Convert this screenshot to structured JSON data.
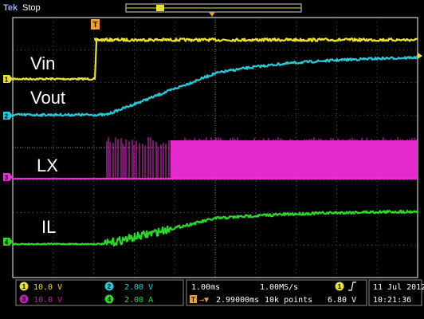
{
  "header": {
    "brand": "Tek",
    "run_state": "Stop",
    "trigger_marker": "T"
  },
  "waveforms": {
    "labels": [
      "Vin",
      "Vout",
      "LX",
      "IL"
    ]
  },
  "channel_markers": {
    "ch1": "1",
    "ch2": "2",
    "ch3": "3",
    "ch4": "4"
  },
  "readouts": {
    "ch1_scale": "10.0 V",
    "ch2_scale": "2.00 V",
    "ch3_scale": "10.0 V",
    "ch4_scale": "2.00 A",
    "timebase": "1.00ms",
    "sample_rate": "1.00MS/s",
    "trigger_position": "2.99000ms",
    "record_length": "10k points",
    "trigger_source": "1",
    "trigger_level": "6.80 V",
    "date": "11 Jul  2012",
    "time": "10:21:36"
  },
  "colors": {
    "ch1": "#e8e030",
    "ch2": "#29c8d8",
    "ch3": "#f02cd8",
    "ch4": "#2ad82a",
    "grid": "#5a5a5a",
    "frame": "#cfcfcf"
  }
}
